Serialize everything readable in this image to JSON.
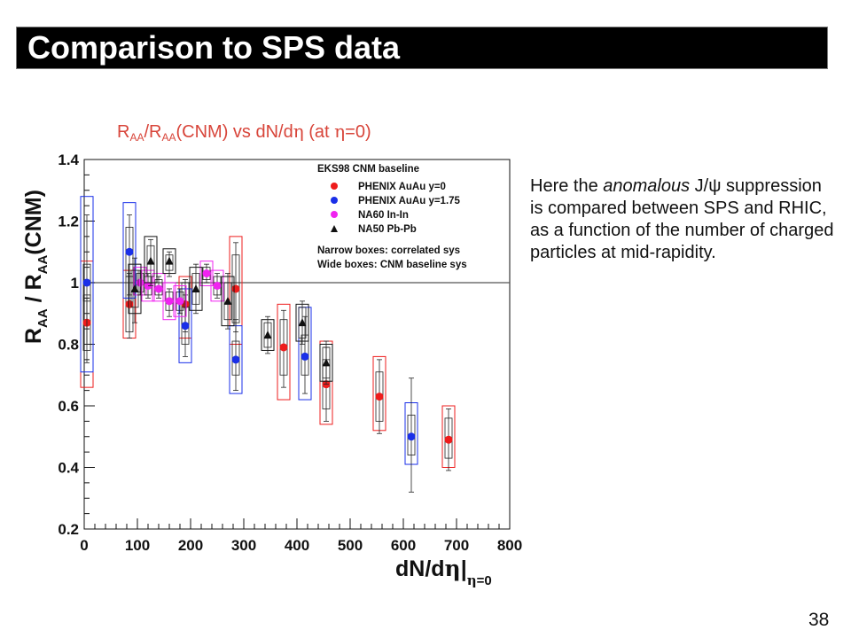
{
  "slide": {
    "title": "Comparison to SPS data",
    "description_parts": [
      "Here the ",
      "anomalous",
      " J/ψ suppression is compared between SPS and RHIC, as a function of the number of charged particles at mid-rapidity."
    ],
    "page_number": "38"
  },
  "chart_data": {
    "type": "scatter",
    "title_parts": {
      "r1": "R",
      "aa1": "AA",
      "slash": "/",
      "r2": "R",
      "aa2": "AA",
      "cnm": "(CNM) vs dN/d",
      "eta1": "η",
      "at": " (at ",
      "eta2": "η",
      "eq": "=0)"
    },
    "ylabel": {
      "r1": "R",
      "aa1": "AA",
      "mid": " / R",
      "aa2": "AA",
      "cnm": "(CNM)"
    },
    "xlabel": {
      "main": "dN/d",
      "eta": "η",
      "bar": "|",
      "sub_eta": "η",
      "sub_rest": "=0"
    },
    "xlim": [
      0,
      800
    ],
    "ylim": [
      0.2,
      1.4
    ],
    "x_ticks": [
      "0",
      "100",
      "200",
      "300",
      "400",
      "500",
      "600",
      "700",
      "800"
    ],
    "y_ticks": [
      "0.2",
      "0.4",
      "0.6",
      "0.8",
      "1",
      "1.2",
      "1.4"
    ],
    "reference_line": 1.0,
    "grid": false,
    "legend": {
      "position": "top-right",
      "title": "EKS98 CNM baseline",
      "notes": [
        "Narrow boxes: correlated sys",
        "Wide boxes: CNM baseline sys"
      ]
    },
    "series": [
      {
        "name": "PHENIX AuAu y=0",
        "color": "#ee1c1c",
        "marker": "circle",
        "points": [
          {
            "x": 5,
            "y": 0.87,
            "elo": 0.8,
            "ehi": 0.95,
            "clo": 0.78,
            "chi": 0.96,
            "wlo": 0.66,
            "whi": 1.07
          },
          {
            "x": 85,
            "y": 0.93,
            "elo": 0.82,
            "ehi": 1.03,
            "clo": 0.84,
            "chi": 1.02,
            "wlo": 0.82,
            "whi": 1.04
          },
          {
            "x": 190,
            "y": 0.93,
            "elo": 0.84,
            "ehi": 1.01,
            "clo": 0.86,
            "chi": 1.0,
            "wlo": 0.82,
            "whi": 1.02
          },
          {
            "x": 285,
            "y": 0.98,
            "elo": 0.84,
            "ehi": 1.13,
            "clo": 0.87,
            "chi": 1.09,
            "wlo": 0.8,
            "whi": 1.15
          },
          {
            "x": 375,
            "y": 0.79,
            "elo": 0.66,
            "ehi": 0.91,
            "clo": 0.7,
            "chi": 0.88,
            "wlo": 0.62,
            "whi": 0.93
          },
          {
            "x": 455,
            "y": 0.67,
            "elo": 0.55,
            "ehi": 0.79,
            "clo": 0.59,
            "chi": 0.75,
            "wlo": 0.54,
            "whi": 0.81
          },
          {
            "x": 555,
            "y": 0.63,
            "elo": 0.51,
            "ehi": 0.75,
            "clo": 0.55,
            "chi": 0.71,
            "wlo": 0.52,
            "whi": 0.76
          },
          {
            "x": 685,
            "y": 0.49,
            "elo": 0.39,
            "ehi": 0.59,
            "clo": 0.43,
            "chi": 0.56,
            "wlo": 0.4,
            "whi": 0.6
          }
        ]
      },
      {
        "name": "PHENIX AuAu y=1.75",
        "color": "#1a2fe8",
        "marker": "circle",
        "points": [
          {
            "x": 5,
            "y": 1.0,
            "elo": 0.74,
            "ehi": 1.22,
            "clo": 0.94,
            "chi": 1.06,
            "wlo": 0.71,
            "whi": 1.28
          },
          {
            "x": 85,
            "y": 1.1,
            "elo": 0.96,
            "ehi": 1.22,
            "clo": 1.02,
            "chi": 1.18,
            "wlo": 0.95,
            "whi": 1.26
          },
          {
            "x": 190,
            "y": 0.86,
            "elo": 0.76,
            "ehi": 0.96,
            "clo": 0.8,
            "chi": 0.92,
            "wlo": 0.74,
            "whi": 0.98
          },
          {
            "x": 285,
            "y": 0.75,
            "elo": 0.65,
            "ehi": 0.88,
            "clo": 0.7,
            "chi": 0.81,
            "wlo": 0.64,
            "whi": 0.86
          },
          {
            "x": 415,
            "y": 0.76,
            "elo": 0.64,
            "ehi": 0.89,
            "clo": 0.7,
            "chi": 0.83,
            "wlo": 0.62,
            "whi": 0.92
          },
          {
            "x": 615,
            "y": 0.5,
            "elo": 0.32,
            "ehi": 0.69,
            "clo": 0.44,
            "chi": 0.57,
            "wlo": 0.41,
            "whi": 0.61
          }
        ]
      },
      {
        "name": "NA60 In-In",
        "color": "#f023f0",
        "marker": "circle",
        "points": [
          {
            "x": 105,
            "y": 1.0,
            "elo": 0.96,
            "ehi": 1.04,
            "clo": 0.97,
            "chi": 1.03,
            "wlo": 0.96,
            "whi": 1.05
          },
          {
            "x": 120,
            "y": 0.99,
            "elo": 0.95,
            "ehi": 1.03,
            "clo": 0.96,
            "chi": 1.02,
            "wlo": 0.94,
            "whi": 1.04
          },
          {
            "x": 140,
            "y": 0.98,
            "elo": 0.95,
            "ehi": 1.02,
            "clo": 0.96,
            "chi": 1.01,
            "wlo": 0.94,
            "whi": 1.03
          },
          {
            "x": 160,
            "y": 0.94,
            "elo": 0.89,
            "ehi": 0.98,
            "clo": 0.91,
            "chi": 0.97,
            "wlo": 0.88,
            "whi": 1.0
          },
          {
            "x": 180,
            "y": 0.94,
            "elo": 0.9,
            "ehi": 0.98,
            "clo": 0.91,
            "chi": 0.97,
            "wlo": 0.89,
            "whi": 0.99
          },
          {
            "x": 230,
            "y": 1.03,
            "elo": 1.0,
            "ehi": 1.06,
            "clo": 1.01,
            "chi": 1.05,
            "wlo": 0.99,
            "whi": 1.07
          },
          {
            "x": 250,
            "y": 0.99,
            "elo": 0.95,
            "ehi": 1.03,
            "clo": 0.96,
            "chi": 1.02,
            "wlo": 0.94,
            "whi": 1.04
          }
        ]
      },
      {
        "name": "NA50 Pb-Pb",
        "color": "#111111",
        "marker": "triangle",
        "points": [
          {
            "x": 95,
            "y": 0.98,
            "elo": 0.87,
            "ehi": 1.08,
            "clo": 0.92,
            "chi": 1.04,
            "wlo": 0.9,
            "whi": 1.06
          },
          {
            "x": 125,
            "y": 1.07,
            "elo": 0.99,
            "ehi": 1.14,
            "clo": 1.02,
            "chi": 1.12,
            "wlo": 1.0,
            "whi": 1.15
          },
          {
            "x": 160,
            "y": 1.07,
            "elo": 1.02,
            "ehi": 1.1,
            "clo": 1.04,
            "chi": 1.09,
            "wlo": 1.03,
            "whi": 1.11
          },
          {
            "x": 210,
            "y": 0.98,
            "elo": 0.9,
            "ehi": 1.06,
            "clo": 0.93,
            "chi": 1.03,
            "wlo": 0.91,
            "whi": 1.05
          },
          {
            "x": 270,
            "y": 0.94,
            "elo": 0.85,
            "ehi": 1.03,
            "clo": 0.88,
            "chi": 1.0,
            "wlo": 0.86,
            "whi": 1.02
          },
          {
            "x": 345,
            "y": 0.83,
            "elo": 0.77,
            "ehi": 0.89,
            "clo": 0.79,
            "chi": 0.87,
            "wlo": 0.78,
            "whi": 0.88
          },
          {
            "x": 410,
            "y": 0.87,
            "elo": 0.8,
            "ehi": 0.94,
            "clo": 0.82,
            "chi": 0.92,
            "wlo": 0.81,
            "whi": 0.93
          },
          {
            "x": 455,
            "y": 0.74,
            "elo": 0.67,
            "ehi": 0.81,
            "clo": 0.69,
            "chi": 0.79,
            "wlo": 0.68,
            "whi": 0.8
          }
        ]
      }
    ]
  }
}
